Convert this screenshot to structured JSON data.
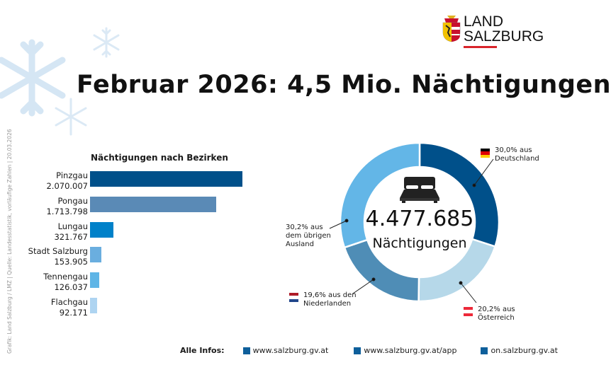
{
  "header": {
    "title": "Februar 2026: 4,5 Mio. Nächtigungen",
    "logo_text": [
      "LAND",
      "SALZBURG"
    ]
  },
  "credit": "Grafik: Land Salzburg / LMZ | Quelle: Landesstatistik, vorläufige Zahlen | 20.03.2026",
  "chart_data": [
    {
      "type": "bar",
      "orientation": "horizontal",
      "title": "Nächtigungen nach Bezirken",
      "categories": [
        "Pinzgau",
        "Pongau",
        "Lungau",
        "Stadt Salzburg",
        "Tennengau",
        "Flachgau"
      ],
      "values": [
        2070007,
        1713798,
        321767,
        153905,
        126037,
        92171
      ],
      "value_labels": [
        "2.070.007",
        "1.713.798",
        "321.767",
        "153.905",
        "126.037",
        "92.171"
      ],
      "colors": [
        "#00508a",
        "#5a8ab6",
        "#0081c9",
        "#6aaedf",
        "#5fb5e6",
        "#aed4f1"
      ]
    },
    {
      "type": "pie",
      "variant": "donut",
      "center_value": "4.477.685",
      "center_label": "Nächtigungen",
      "slices": [
        {
          "label": "30,0% aus Deutschland",
          "lines": [
            "30,0% aus",
            "Deutschland"
          ],
          "value": 30.0,
          "color": "#00508a",
          "flag": [
            "#000000",
            "#dd0000",
            "#ffce00"
          ]
        },
        {
          "label": "20,2% aus Österreich",
          "lines": [
            "20,2% aus",
            "Österreich"
          ],
          "value": 20.2,
          "color": "#b6d8e9",
          "flag": [
            "#ed2939",
            "#ffffff",
            "#ed2939"
          ]
        },
        {
          "label": "19,6% aus den Niederlanden",
          "lines": [
            "19,6% aus den",
            "Niederlanden"
          ],
          "value": 19.6,
          "color": "#4f8db6",
          "flag": [
            "#ae1c28",
            "#ffffff",
            "#21468b"
          ]
        },
        {
          "label": "30,2% aus dem übrigen Ausland",
          "lines": [
            "30,2% aus",
            "dem übrigen",
            "Ausland"
          ],
          "value": 30.2,
          "color": "#63b6e7"
        }
      ]
    }
  ],
  "footer": {
    "label": "Alle Infos:",
    "links": [
      "www.salzburg.gv.at",
      "www.salzburg.gv.at/app",
      "on.salzburg.gv.at"
    ]
  }
}
